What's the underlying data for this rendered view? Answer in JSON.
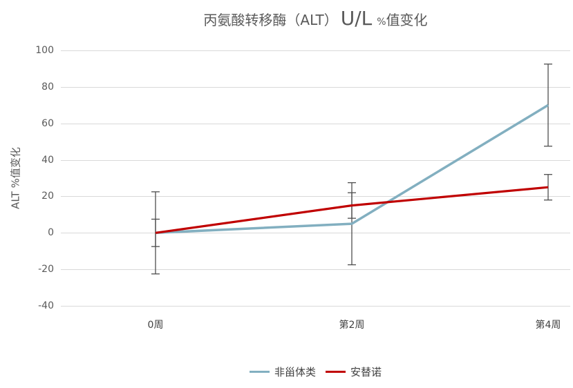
{
  "title": {
    "segment_main": "丙氨酸转移酶（ALT）",
    "segment_unit": "U/L",
    "segment_percent": "%",
    "segment_suffix": "值变化"
  },
  "chart_data": {
    "type": "line",
    "title": "丙氨酸转移酶（ALT）U/L %值变化",
    "xlabel": "",
    "ylabel": "ALT %值变化",
    "categories": [
      "0周",
      "第2周",
      "第4周"
    ],
    "yticks": [
      100,
      80,
      60,
      40,
      20,
      0,
      -20,
      -40
    ],
    "ylim": [
      -40,
      100
    ],
    "grid": "horizontal",
    "legend_position": "bottom",
    "error_bars": true,
    "series": [
      {
        "name": "非甾体类",
        "color": "#82AFC0",
        "values": [
          0,
          5,
          70
        ],
        "errors": [
          22.5,
          22.5,
          22.5
        ]
      },
      {
        "name": "安替诺",
        "color": "#C00000",
        "values": [
          0,
          15,
          25
        ],
        "errors": [
          7.5,
          7,
          7
        ]
      }
    ],
    "colors": {
      "grid": "#D9D9D9",
      "error_bar": "#4D4D4D",
      "axis_text": "#595959",
      "title_text": "#595959"
    }
  }
}
